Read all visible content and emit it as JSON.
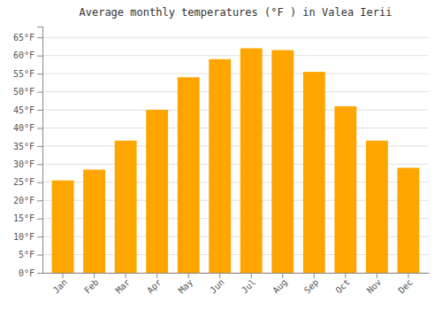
{
  "chart_data": {
    "type": "bar",
    "title": "Average monthly temperatures (°F ) in Valea Ierii",
    "categories": [
      "Jan",
      "Feb",
      "Mar",
      "Apr",
      "May",
      "Jun",
      "Jul",
      "Aug",
      "Sep",
      "Oct",
      "Nov",
      "Dec"
    ],
    "values": [
      25.5,
      28.5,
      36.5,
      45.0,
      54.0,
      59.0,
      62.0,
      61.5,
      55.5,
      46.0,
      36.5,
      29.0
    ],
    "color": "#FFA500",
    "ylim": [
      0,
      68
    ],
    "yticks": [
      {
        "value": 0,
        "label": "0°F"
      },
      {
        "value": 5,
        "label": "5°F"
      },
      {
        "value": 10,
        "label": "10°F"
      },
      {
        "value": 15,
        "label": "15°F"
      },
      {
        "value": 20,
        "label": "20°F"
      },
      {
        "value": 25,
        "label": "25°F"
      },
      {
        "value": 30,
        "label": "30°F"
      },
      {
        "value": 35,
        "label": "35°F"
      },
      {
        "value": 40,
        "label": "40°F"
      },
      {
        "value": 45,
        "label": "45°F"
      },
      {
        "value": 50,
        "label": "50°F"
      },
      {
        "value": 55,
        "label": "55°F"
      },
      {
        "value": 60,
        "label": "60°F"
      },
      {
        "value": 65,
        "label": "65°F"
      }
    ],
    "grid": true
  }
}
